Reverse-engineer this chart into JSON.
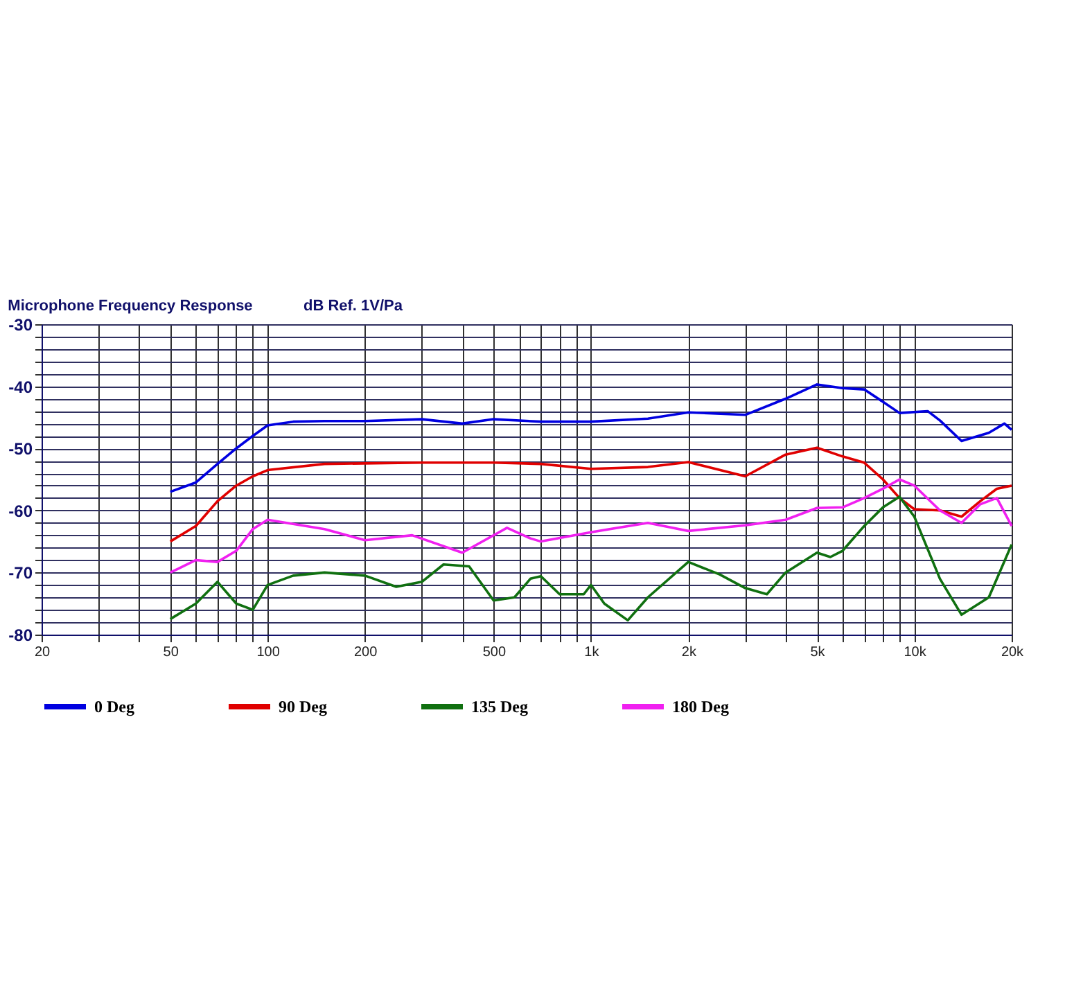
{
  "chart_data": {
    "type": "line",
    "title": "Microphone Frequency Response",
    "ylabel": "dB Ref. 1V/Pa",
    "log": "x",
    "grid": true,
    "legend": "bottom",
    "marker": "none",
    "line_style": "solid",
    "xlim": [
      20,
      20000
    ],
    "ylim": [
      -80,
      -30
    ],
    "xticks": [
      20,
      {
        "value": 30,
        "label": null
      },
      {
        "value": 40,
        "label": null
      },
      50,
      {
        "value": 60,
        "label": null
      },
      {
        "value": 70,
        "label": null
      },
      {
        "value": 80,
        "label": null
      },
      {
        "value": 90,
        "label": null
      },
      100,
      200,
      {
        "value": 300,
        "label": null
      },
      {
        "value": 400,
        "label": null
      },
      500,
      {
        "value": 600,
        "label": null
      },
      {
        "value": 700,
        "label": null
      },
      {
        "value": 800,
        "label": null
      },
      {
        "value": 900,
        "label": null
      },
      {
        "value": 1000,
        "label": "1k"
      },
      {
        "value": 2000,
        "label": "2k"
      },
      {
        "value": 3000,
        "label": null
      },
      {
        "value": 4000,
        "label": null
      },
      {
        "value": 5000,
        "label": "5k"
      },
      {
        "value": 6000,
        "label": null
      },
      {
        "value": 7000,
        "label": null
      },
      {
        "value": 8000,
        "label": null
      },
      {
        "value": 9000,
        "label": null
      },
      {
        "value": 10000,
        "label": "10k"
      },
      {
        "value": 20000,
        "label": "20k"
      }
    ],
    "yticks": [
      -80,
      {
        "value": -78,
        "label": null
      },
      {
        "value": -76,
        "label": null
      },
      {
        "value": -74,
        "label": null
      },
      {
        "value": -72,
        "label": null
      },
      -70,
      {
        "value": -68,
        "label": null
      },
      {
        "value": -66,
        "label": null
      },
      {
        "value": -64,
        "label": null
      },
      {
        "value": -62,
        "label": null
      },
      -60,
      {
        "value": -58,
        "label": null
      },
      {
        "value": -56,
        "label": null
      },
      {
        "value": -54,
        "label": null
      },
      {
        "value": -52,
        "label": null
      },
      -50,
      {
        "value": -48,
        "label": null
      },
      {
        "value": -46,
        "label": null
      },
      {
        "value": -44,
        "label": null
      },
      {
        "value": -42,
        "label": null
      },
      -40,
      {
        "value": -38,
        "label": null
      },
      {
        "value": -36,
        "label": null
      },
      {
        "value": -34,
        "label": null
      },
      {
        "value": -32,
        "label": null
      },
      -30
    ],
    "series": [
      {
        "name": "0 Deg",
        "color": "#0000e0",
        "x": [
          50,
          60,
          70,
          80,
          90,
          100,
          120,
          150,
          200,
          300,
          400,
          500,
          700,
          1000,
          1500,
          2000,
          3000,
          4000,
          5000,
          6000,
          7000,
          8000,
          9000,
          11000,
          12000,
          14000,
          17000,
          19000,
          20000
        ],
        "values": [
          -57,
          -55.5,
          -52.5,
          -50,
          -48,
          -46.3,
          -45.7,
          -45.6,
          -45.6,
          -45.3,
          -46,
          -45.3,
          -45.7,
          -45.7,
          -45.2,
          -44.2,
          -44.6,
          -42,
          -39.7,
          -40.3,
          -40.5,
          -42.5,
          -44.3,
          -44,
          -45.5,
          -48.8,
          -47.5,
          -46,
          -47
        ]
      },
      {
        "name": "90 Deg",
        "color": "#e00000",
        "x": [
          50,
          60,
          70,
          80,
          90,
          100,
          150,
          300,
          500,
          700,
          1000,
          1500,
          2000,
          3000,
          4000,
          5000,
          6000,
          7000,
          8000,
          9000,
          10000,
          12000,
          14000,
          16000,
          18000,
          20000
        ],
        "values": [
          -65,
          -62.5,
          -58.5,
          -56,
          -54.5,
          -53.5,
          -52.5,
          -52.3,
          -52.3,
          -52.5,
          -53.3,
          -53,
          -52.2,
          -54.5,
          -51,
          -49.9,
          -51.3,
          -52.3,
          -55,
          -58,
          -59.8,
          -60,
          -61,
          -58.5,
          -56.5,
          -56
        ]
      },
      {
        "name": "135 Deg",
        "color": "#107010",
        "x": [
          50,
          60,
          70,
          80,
          90,
          100,
          120,
          150,
          200,
          250,
          300,
          350,
          420,
          500,
          580,
          650,
          700,
          800,
          950,
          1000,
          1100,
          1300,
          1500,
          2000,
          2500,
          3000,
          3500,
          4000,
          5000,
          5500,
          6000,
          7000,
          8000,
          9000,
          10000,
          12000,
          14000,
          17000,
          20000
        ],
        "values": [
          -77.5,
          -75,
          -71.5,
          -75,
          -76,
          -72,
          -70.5,
          -70,
          -70.5,
          -72.3,
          -71.5,
          -68.7,
          -69,
          -74.5,
          -74,
          -71,
          -70.6,
          -73.5,
          -73.5,
          -72,
          -75,
          -77.7,
          -74,
          -68.3,
          -70.3,
          -72.5,
          -73.5,
          -70,
          -66.8,
          -67.5,
          -66.5,
          -62.5,
          -59.5,
          -57.8,
          -61,
          -71,
          -76.8,
          -74,
          -65.5
        ]
      },
      {
        "name": "180 Deg",
        "color": "#f020f0",
        "x": [
          50,
          60,
          70,
          80,
          90,
          100,
          150,
          200,
          280,
          400,
          550,
          650,
          700,
          1000,
          1500,
          2000,
          3000,
          4000,
          5000,
          6000,
          7000,
          8000,
          9000,
          10000,
          12000,
          14000,
          16000,
          18000,
          20000
        ],
        "values": [
          -70,
          -68,
          -68.3,
          -66.5,
          -63,
          -61.5,
          -63,
          -64.8,
          -64,
          -66.8,
          -62.8,
          -64.5,
          -65,
          -63.5,
          -62,
          -63.3,
          -62.4,
          -61.5,
          -59.6,
          -59.5,
          -58,
          -56.5,
          -55,
          -56,
          -60,
          -62,
          -59,
          -58,
          -62.5
        ]
      }
    ]
  }
}
